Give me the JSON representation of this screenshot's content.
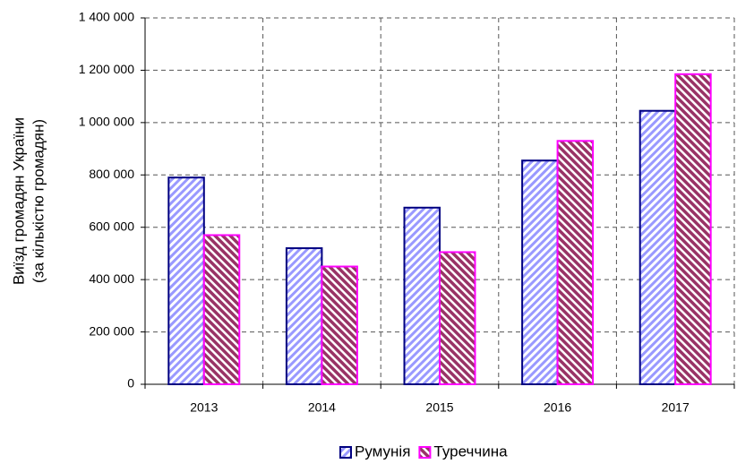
{
  "chart_data": {
    "type": "bar",
    "ylabel": [
      "Виїзд громадян України",
      "(за кількістю громадян)"
    ],
    "categories": [
      "2013",
      "2014",
      "2015",
      "2016",
      "2017"
    ],
    "series": [
      {
        "name": "Румунія",
        "color": "#000080",
        "fill": "#9999ff",
        "values": [
          790000,
          520000,
          675000,
          855000,
          1045000
        ]
      },
      {
        "name": "Туреччина",
        "color": "#ff00ff",
        "fill": "#993366",
        "values": [
          570000,
          450000,
          505000,
          930000,
          1185000
        ]
      }
    ],
    "ylim": [
      0,
      1400000
    ],
    "yticks": [
      0,
      {
        "value": 200000,
        "label": "200 000"
      },
      {
        "value": 400000,
        "label": "400 000"
      },
      {
        "value": 600000,
        "label": "600 000"
      },
      {
        "value": 800000,
        "label": "800 000"
      },
      {
        "value": 1000000,
        "label": "1 000 000"
      },
      {
        "value": 1200000,
        "label": "1 200 000"
      },
      {
        "value": 1400000,
        "label": "1 400 000"
      }
    ],
    "grid": true,
    "legend": "bottom"
  }
}
